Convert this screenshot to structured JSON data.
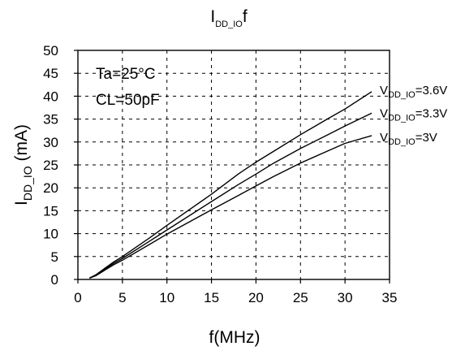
{
  "chart_data": {
    "type": "line",
    "title": {
      "base": "I",
      "sub": "DD_IO",
      "tail": "f"
    },
    "xlabel": "f(MHz)",
    "ylabel": {
      "base": "I",
      "sub": "DD_IO",
      "tail": " (mA)"
    },
    "xlim": [
      0,
      35
    ],
    "ylim": [
      0,
      50
    ],
    "xticks": [
      0,
      5,
      10,
      15,
      20,
      25,
      30,
      35
    ],
    "yticks": [
      0,
      5,
      10,
      15,
      20,
      25,
      30,
      35,
      40,
      45,
      50
    ],
    "grid": true,
    "annotations": [
      "Ta=25°C",
      "CL=50pF"
    ],
    "series": [
      {
        "name": {
          "base": "V",
          "sub": "DD_IO",
          "tail": "=3.6V"
        },
        "x": [
          1.3,
          2,
          3,
          4,
          5,
          8,
          10,
          15,
          18,
          20,
          22,
          25,
          28,
          30,
          33
        ],
        "y": [
          0.3,
          1.0,
          2.4,
          3.8,
          5.0,
          9.0,
          11.8,
          18.6,
          23.0,
          25.6,
          28.0,
          31.6,
          35.0,
          37.2,
          41.0
        ],
        "color": "#000000"
      },
      {
        "name": {
          "base": "V",
          "sub": "DD_IO",
          "tail": "=3.3V"
        },
        "x": [
          1.3,
          2,
          3,
          4,
          5,
          8,
          10,
          15,
          18,
          20,
          22,
          25,
          28,
          30,
          33
        ],
        "y": [
          0.3,
          0.9,
          2.2,
          3.5,
          4.6,
          8.3,
          10.8,
          17.0,
          20.7,
          23.0,
          25.4,
          28.6,
          31.5,
          33.5,
          36.3
        ],
        "color": "#000000"
      },
      {
        "name": {
          "base": "V",
          "sub": "DD_IO",
          "tail": "=3V"
        },
        "x": [
          1.3,
          2,
          3,
          4,
          5,
          8,
          10,
          15,
          18,
          20,
          22,
          25,
          28,
          30,
          33
        ],
        "y": [
          0.3,
          0.8,
          2.0,
          3.2,
          4.2,
          7.6,
          9.9,
          15.2,
          18.3,
          20.4,
          22.5,
          25.4,
          28.0,
          29.7,
          31.4
        ],
        "color": "#000000"
      }
    ]
  }
}
